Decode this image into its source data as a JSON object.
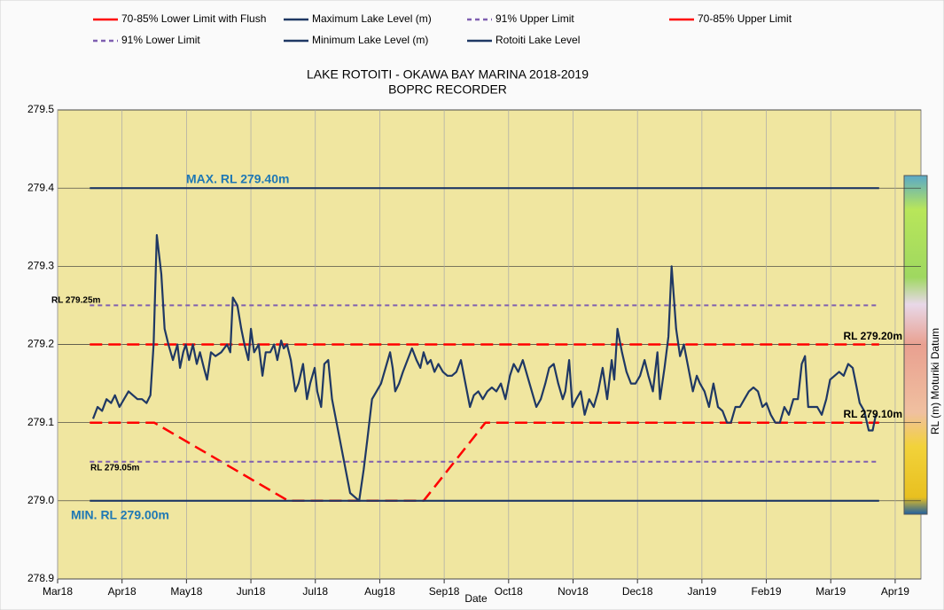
{
  "chart_data": {
    "type": "line",
    "title": "LAKE ROTOITI - OKAWA BAY MARINA 2018-2019",
    "subtitle": "BOPRC RECORDER",
    "xlabel": "Date",
    "ylabel": "RL (m) Moturiki  Datum",
    "xlim": [
      0,
      13.4
    ],
    "xticks": [
      {
        "value": 0,
        "label": "Mar18"
      },
      {
        "value": 1,
        "label": "Apr18"
      },
      {
        "value": 2,
        "label": "May18"
      },
      {
        "value": 3,
        "label": "Jun18"
      },
      {
        "value": 4,
        "label": "Jul18"
      },
      {
        "value": 5,
        "label": "Aug18"
      },
      {
        "value": 6,
        "label": "Sep18"
      },
      {
        "value": 7,
        "label": "Oct18"
      },
      {
        "value": 8,
        "label": "Nov18"
      },
      {
        "value": 9,
        "label": "Dec18"
      },
      {
        "value": 10,
        "label": "Jan19"
      },
      {
        "value": 11,
        "label": "Feb19"
      },
      {
        "value": 12,
        "label": "Mar19"
      },
      {
        "value": 13,
        "label": "Apr19"
      }
    ],
    "ylim": [
      278.9,
      279.5
    ],
    "yticks": [
      278.9,
      {
        "value": 279,
        "label": "279.0"
      },
      279.1,
      279.2,
      279.3,
      279.4,
      279.5
    ],
    "grid": true,
    "legend": "top",
    "annotations": [
      "MAX. RL 279.40m",
      "MIN. RL 279.00m",
      "RL 279.25m",
      "RL 279.05m",
      "RL 279.20m",
      "RL 279.10m"
    ],
    "series": [
      {
        "name": "70-85% Lower Limit with Flush",
        "color": "#ff0000",
        "dashed": true,
        "x": [
          0.5,
          1.5,
          3.58,
          5.68,
          6.64,
          12.75
        ],
        "values": [
          279.1,
          279.1,
          279,
          279,
          279.1,
          279.1
        ]
      },
      {
        "name": "Maximum Lake Level (m)",
        "color": "#1f3864",
        "dashed": false,
        "x": [
          0.5,
          12.75
        ],
        "values": [
          279.4,
          279.4
        ]
      },
      {
        "name": "91% Upper Limit",
        "color": "#7f5fb0",
        "dashed": true,
        "x": [
          0.5,
          12.75
        ],
        "values": [
          279.25,
          279.25
        ]
      },
      {
        "name": "70-85% Upper Limit",
        "color": "#ff0000",
        "dashed": true,
        "x": [
          0.5,
          12.75
        ],
        "values": [
          279.2,
          279.2
        ]
      },
      {
        "name": "91% Lower Limit",
        "color": "#7f5fb0",
        "dashed": true,
        "x": [
          0.5,
          12.75
        ],
        "values": [
          279.05,
          279.05
        ]
      },
      {
        "name": "Minimum Lake Level (m)",
        "color": "#1f3864",
        "dashed": false,
        "x": [
          0.5,
          12.75
        ],
        "values": [
          279,
          279
        ]
      },
      {
        "name": "Rotoiti Lake Level",
        "color": "#1f3864",
        "dashed": false,
        "x": [
          0.55,
          0.62,
          0.69,
          0.76,
          0.83,
          0.89,
          0.96,
          1.03,
          1.1,
          1.17,
          1.24,
          1.31,
          1.38,
          1.44,
          1.49,
          1.54,
          1.61,
          1.66,
          1.72,
          1.79,
          1.86,
          1.9,
          1.95,
          1.99,
          2.04,
          2.1,
          2.16,
          2.21,
          2.27,
          2.32,
          2.38,
          2.45,
          2.54,
          2.63,
          2.68,
          2.72,
          2.79,
          2.85,
          2.9,
          2.96,
          3.0,
          3.05,
          3.12,
          3.18,
          3.23,
          3.3,
          3.36,
          3.41,
          3.47,
          3.51,
          3.56,
          3.62,
          3.69,
          3.74,
          3.81,
          3.87,
          3.92,
          3.99,
          4.03,
          4.09,
          4.14,
          4.2,
          4.26,
          4.33,
          4.4,
          4.47,
          4.54,
          4.61,
          4.68,
          4.75,
          4.81,
          4.88,
          4.95,
          5.02,
          5.09,
          5.16,
          5.2,
          5.24,
          5.3,
          5.36,
          5.43,
          5.5,
          5.57,
          5.63,
          5.68,
          5.74,
          5.79,
          5.85,
          5.91,
          5.98,
          6.05,
          6.12,
          6.19,
          6.26,
          6.33,
          6.4,
          6.46,
          6.53,
          6.6,
          6.67,
          6.74,
          6.81,
          6.88,
          6.95,
          7.02,
          7.08,
          7.15,
          7.22,
          7.29,
          7.36,
          7.43,
          7.5,
          7.57,
          7.63,
          7.7,
          7.77,
          7.84,
          7.88,
          7.94,
          7.99,
          8.05,
          8.12,
          8.18,
          8.25,
          8.32,
          8.39,
          8.46,
          8.53,
          8.6,
          8.64,
          8.69,
          8.76,
          8.83,
          8.9,
          8.97,
          9.04,
          9.11,
          9.17,
          9.24,
          9.31,
          9.35,
          9.42,
          9.48,
          9.53,
          9.6,
          9.66,
          9.72,
          9.79,
          9.86,
          9.92,
          9.97,
          10.04,
          10.11,
          10.18,
          10.25,
          10.32,
          10.39,
          10.45,
          10.52,
          10.59,
          10.66,
          10.73,
          10.8,
          10.87,
          10.94,
          11.0,
          11.07,
          11.14,
          11.21,
          11.28,
          11.35,
          11.42,
          11.49,
          11.55,
          11.6,
          11.65,
          11.72,
          11.79,
          11.86,
          11.93,
          11.99,
          12.06,
          12.13,
          12.2,
          12.27,
          12.34,
          12.39,
          12.45,
          12.52,
          12.59,
          12.65,
          12.7
        ],
        "values": [
          279.105,
          279.12,
          279.115,
          279.13,
          279.125,
          279.135,
          279.12,
          279.13,
          279.14,
          279.135,
          279.13,
          279.13,
          279.125,
          279.135,
          279.2,
          279.34,
          279.29,
          279.22,
          279.2,
          279.18,
          279.2,
          279.17,
          279.19,
          279.2,
          279.18,
          279.2,
          279.175,
          279.19,
          279.17,
          279.155,
          279.19,
          279.185,
          279.19,
          279.2,
          279.19,
          279.26,
          279.25,
          279.22,
          279.2,
          279.18,
          279.22,
          279.19,
          279.2,
          279.16,
          279.19,
          279.19,
          279.2,
          279.18,
          279.205,
          279.195,
          279.2,
          279.18,
          279.14,
          279.15,
          279.175,
          279.13,
          279.15,
          279.17,
          279.14,
          279.12,
          279.175,
          279.18,
          279.13,
          279.1,
          279.07,
          279.04,
          279.01,
          279.005,
          279,
          279.04,
          279.08,
          279.13,
          279.14,
          279.15,
          279.17,
          279.19,
          279.17,
          279.14,
          279.15,
          279.165,
          279.18,
          279.195,
          279.18,
          279.17,
          279.19,
          279.175,
          279.18,
          279.165,
          279.175,
          279.165,
          279.16,
          279.16,
          279.165,
          279.18,
          279.15,
          279.12,
          279.135,
          279.14,
          279.13,
          279.14,
          279.145,
          279.14,
          279.15,
          279.13,
          279.16,
          279.175,
          279.165,
          279.18,
          279.16,
          279.14,
          279.12,
          279.13,
          279.15,
          279.17,
          279.175,
          279.15,
          279.13,
          279.14,
          279.18,
          279.12,
          279.13,
          279.14,
          279.11,
          279.13,
          279.12,
          279.14,
          279.17,
          279.13,
          279.18,
          279.155,
          279.22,
          279.19,
          279.165,
          279.15,
          279.15,
          279.16,
          279.18,
          279.16,
          279.14,
          279.19,
          279.13,
          279.17,
          279.21,
          279.3,
          279.22,
          279.185,
          279.2,
          279.17,
          279.14,
          279.16,
          279.15,
          279.14,
          279.12,
          279.15,
          279.12,
          279.115,
          279.1,
          279.1,
          279.12,
          279.12,
          279.13,
          279.14,
          279.145,
          279.14,
          279.12,
          279.125,
          279.11,
          279.1,
          279.1,
          279.12,
          279.11,
          279.13,
          279.13,
          279.175,
          279.185,
          279.12,
          279.12,
          279.12,
          279.11,
          279.13,
          279.155,
          279.16,
          279.165,
          279.16,
          279.175,
          279.17,
          279.15,
          279.125,
          279.115,
          279.09,
          279.09,
          279.11
        ]
      }
    ]
  }
}
